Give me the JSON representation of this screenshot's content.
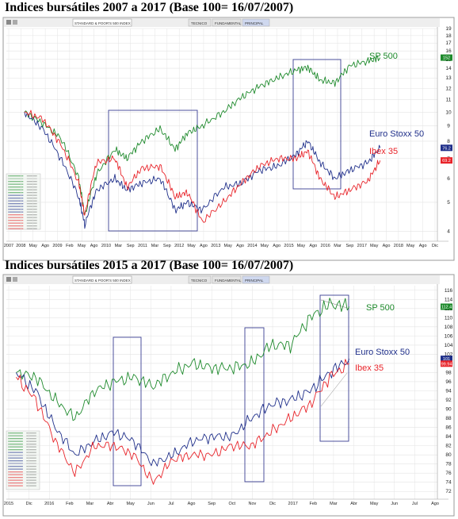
{
  "charts": [
    {
      "title": "Indices bursátiles 2007 a 2017 (Base 100= 16/07/2007)",
      "toolbar": {
        "button_text": "STANDARD & POOR'S 500 INDEX",
        "tabs": [
          "TECNICO",
          "FUNDAMENTAL",
          "PRINCIPAL"
        ]
      },
      "x_tick_labels": [
        "2007",
        "2008",
        "May",
        "Ago",
        "2009",
        "Feb",
        "May",
        "Ago",
        "2010",
        "Mar",
        "Sep",
        "2011",
        "Mar",
        "Sep",
        "2012",
        "May",
        "Ago",
        "2013",
        "May",
        "Ago",
        "2014",
        "May",
        "Ago",
        "2015",
        "May",
        "Ago",
        "2016",
        "Mar",
        "Sep",
        "2017",
        "May",
        "Ago",
        "2018",
        "May",
        "Ago",
        "Dic"
      ],
      "y_tick_labels": [
        "4",
        "5",
        "6",
        "7",
        "8",
        "9",
        "10",
        "11",
        "12",
        "13",
        "14",
        "15",
        "16",
        "17",
        "18",
        "19"
      ],
      "series_labels": [
        "SP 500",
        "Euro Stoxx 50",
        "Ibex 35"
      ],
      "last_value_tags": [
        "152",
        "76.2",
        "69.2"
      ],
      "colors": {
        "sp500": "#1e8a2c",
        "stoxx": "#1f2f8a",
        "ibex": "#e8242a",
        "box": "#3a3f92",
        "grid": "#e3e3e3"
      }
    },
    {
      "title": "Indices bursátiles 2015 a 2017 (Base 100= 16/07/2007)",
      "toolbar": {
        "button_text": "STANDARD & POOR'S 500 INDEX",
        "tabs": [
          "TECNICO",
          "FUNDAMENTAL",
          "PRINCIPAL"
        ]
      },
      "x_tick_labels": [
        "2015",
        "Dic",
        "2016",
        "Feb",
        "Mar",
        "Abr",
        "May",
        "Jun",
        "Jul",
        "Ago",
        "Sep",
        "Oct",
        "Nov",
        "Dic",
        "2017",
        "Feb",
        "Mar",
        "Abr",
        "May",
        "Jun",
        "Jul",
        "Ago"
      ],
      "y_tick_labels": [
        "72",
        "74",
        "76",
        "78",
        "80",
        "82",
        "84",
        "86",
        "88",
        "90",
        "92",
        "94",
        "96",
        "98",
        "100",
        "102",
        "104",
        "106",
        "108",
        "110",
        "112",
        "114",
        "116"
      ],
      "series_labels": [
        "SP 500",
        "Euro Stoxx 50",
        "Ibex 35"
      ],
      "last_value_tags": [
        "112.4",
        "101",
        "99.94"
      ],
      "colors": {
        "sp500": "#1e8a2c",
        "stoxx": "#1f2f8a",
        "ibex": "#e8242a",
        "box": "#3a3f92",
        "grid": "#e3e3e3"
      }
    }
  ],
  "chart_data": [
    {
      "type": "line",
      "title": "Indices bursátiles 2007 a 2017 (Base 100= 16/07/2007)",
      "x": [
        "2007-07",
        "2008-01",
        "2008-07",
        "2009-01",
        "2009-03",
        "2009-07",
        "2010-01",
        "2010-05",
        "2010-10",
        "2011-04",
        "2011-09",
        "2012-01",
        "2012-06",
        "2013-01",
        "2013-07",
        "2014-01",
        "2014-07",
        "2015-01",
        "2015-05",
        "2015-09",
        "2016-02",
        "2016-07",
        "2017-01",
        "2017-05"
      ],
      "series": [
        {
          "name": "SP 500",
          "values": [
            100,
            92,
            82,
            60,
            45,
            62,
            75,
            70,
            80,
            88,
            75,
            85,
            90,
            100,
            112,
            122,
            130,
            138,
            141,
            128,
            125,
            143,
            148,
            152
          ]
        },
        {
          "name": "Euro Stoxx 50",
          "values": [
            100,
            88,
            70,
            52,
            42,
            55,
            60,
            55,
            58,
            60,
            47,
            50,
            47,
            56,
            58,
            64,
            66,
            72,
            80,
            68,
            60,
            64,
            68,
            76
          ]
        },
        {
          "name": "Ibex 35",
          "values": [
            100,
            95,
            78,
            58,
            45,
            68,
            70,
            56,
            65,
            66,
            52,
            54,
            43,
            50,
            58,
            66,
            70,
            70,
            74,
            60,
            52,
            55,
            59,
            69
          ]
        }
      ],
      "ylim": [
        38,
        190
      ],
      "y_scale": "log",
      "grid": true,
      "legend": "inline labels right of lines"
    },
    {
      "type": "line",
      "title": "Indices bursátiles 2015 a 2017 (Base 100= 16/07/2007)",
      "x": [
        "2015-11",
        "2015-12",
        "2016-01",
        "2016-02",
        "2016-03",
        "2016-04",
        "2016-05",
        "2016-06",
        "2016-07",
        "2016-08",
        "2016-09",
        "2016-10",
        "2016-11",
        "2016-12",
        "2017-01",
        "2017-02",
        "2017-03",
        "2017-04"
      ],
      "series": [
        {
          "name": "SP 500",
          "values": [
            98,
            97,
            92,
            88,
            94,
            96,
            97,
            95,
            98,
            100,
            99,
            99,
            100,
            104,
            104,
            110,
            113,
            112.4
          ]
        },
        {
          "name": "Euro Stoxx 50",
          "values": [
            98,
            94,
            86,
            80,
            83,
            85,
            83,
            78,
            80,
            83,
            84,
            84,
            88,
            91,
            92,
            94,
            98,
            101
          ]
        },
        {
          "name": "Ibex 35",
          "values": [
            97,
            92,
            83,
            76,
            82,
            82,
            80,
            74,
            79,
            80,
            80,
            82,
            82,
            85,
            88,
            91,
            97,
            99.94
          ]
        }
      ],
      "ylim": [
        71,
        117
      ],
      "grid": true,
      "legend": "inline labels right of lines"
    }
  ]
}
